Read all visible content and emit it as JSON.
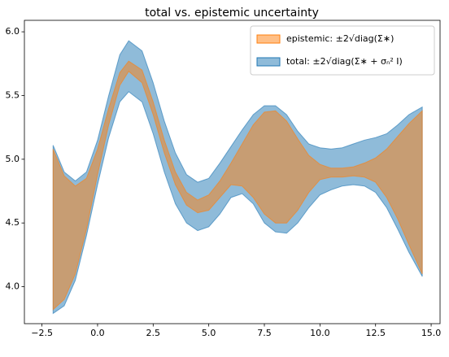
{
  "chart_data": {
    "type": "band",
    "title": "total vs. epistemic uncertainty",
    "x": [
      -2,
      -1.5,
      -1,
      -0.5,
      0,
      0.5,
      1.0,
      1.4,
      2.0,
      2.5,
      3.0,
      3.5,
      4.0,
      4.5,
      5.0,
      5.5,
      6.0,
      6.5,
      7.0,
      7.5,
      8.0,
      8.5,
      9.0,
      9.5,
      10.0,
      10.5,
      11,
      11.5,
      12,
      12.5,
      13,
      13.5,
      14,
      14.6
    ],
    "series": [
      {
        "name": "epistemic: ±2√diag(Σ∗)",
        "color": "#ff7f0e",
        "upper": [
          5.08,
          4.87,
          4.79,
          4.85,
          5.08,
          5.4,
          5.68,
          5.77,
          5.7,
          5.45,
          5.15,
          4.9,
          4.74,
          4.68,
          4.72,
          4.83,
          4.97,
          5.12,
          5.27,
          5.37,
          5.38,
          5.3,
          5.16,
          5.03,
          4.96,
          4.93,
          4.93,
          4.94,
          4.97,
          5.01,
          5.08,
          5.18,
          5.28,
          5.38
        ],
        "lower": [
          3.82,
          3.9,
          4.1,
          4.45,
          4.88,
          5.27,
          5.58,
          5.69,
          5.6,
          5.35,
          5.05,
          4.8,
          4.64,
          4.58,
          4.6,
          4.7,
          4.8,
          4.79,
          4.7,
          4.57,
          4.5,
          4.5,
          4.6,
          4.74,
          4.84,
          4.86,
          4.86,
          4.87,
          4.86,
          4.82,
          4.7,
          4.53,
          4.33,
          4.1
        ]
      },
      {
        "name": "total: ±2√diag(Σ∗ + σₙ² I)",
        "color": "#1f77b4",
        "upper": [
          5.11,
          4.9,
          4.83,
          4.9,
          5.15,
          5.5,
          5.82,
          5.93,
          5.85,
          5.6,
          5.3,
          5.05,
          4.88,
          4.82,
          4.85,
          4.97,
          5.1,
          5.23,
          5.35,
          5.42,
          5.42,
          5.35,
          5.22,
          5.12,
          5.09,
          5.08,
          5.09,
          5.12,
          5.15,
          5.17,
          5.2,
          5.27,
          5.35,
          5.41
        ],
        "lower": [
          3.79,
          3.85,
          4.05,
          4.4,
          4.8,
          5.17,
          5.45,
          5.53,
          5.45,
          5.2,
          4.9,
          4.65,
          4.5,
          4.44,
          4.47,
          4.57,
          4.7,
          4.73,
          4.65,
          4.5,
          4.43,
          4.42,
          4.5,
          4.62,
          4.72,
          4.76,
          4.79,
          4.8,
          4.79,
          4.74,
          4.62,
          4.45,
          4.27,
          4.08
        ]
      }
    ],
    "xlim": [
      -3.29,
      15.4
    ],
    "ylim": [
      3.71,
      6.09
    ],
    "xticks": [
      {
        "value": -2.5,
        "label": "−2.5"
      },
      {
        "value": 0,
        "label": "0.0"
      },
      2.5,
      {
        "value": 5,
        "label": "5.0"
      },
      7.5,
      {
        "value": 10,
        "label": "10.0"
      },
      12.5,
      {
        "value": 15,
        "label": "15.0"
      }
    ],
    "yticks": [
      {
        "value": 4,
        "label": "4.0"
      },
      4.5,
      {
        "value": 5,
        "label": "5.0"
      },
      5.5,
      {
        "value": 6,
        "label": "6.0"
      }
    ],
    "legend": "upper right"
  }
}
